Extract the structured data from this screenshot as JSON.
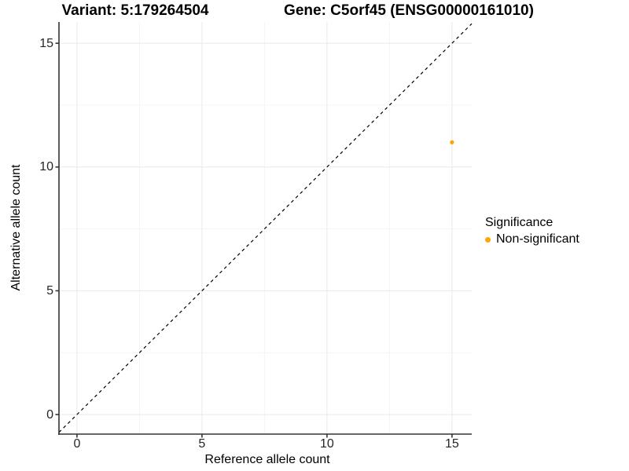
{
  "chart_data": {
    "type": "scatter",
    "title_left": "Variant: 5:179264504",
    "title_right": "Gene: C5orf45 (ENSG00000161010)",
    "xlabel": "Reference allele count",
    "ylabel": "Alternative allele count",
    "xlim": [
      -0.72,
      15.79
    ],
    "ylim": [
      -0.79,
      15.86
    ],
    "xticks": [
      0,
      5,
      10,
      15
    ],
    "yticks": [
      0,
      5,
      10,
      15
    ],
    "xminor": [
      2.5,
      7.5,
      12.5
    ],
    "yminor": [
      2.5,
      7.5,
      12.5
    ],
    "grid": true,
    "identity_line": {
      "style": "dashed",
      "slope": 1,
      "intercept": 0,
      "color": "#000000"
    },
    "series": [
      {
        "name": "Non-significant",
        "color": "#FFA500",
        "points": [
          {
            "x": 15,
            "y": 11
          }
        ]
      }
    ],
    "legend": {
      "title": "Significance",
      "position": "right",
      "items": [
        {
          "label": "Non-significant",
          "color": "#FFA500"
        }
      ]
    },
    "colors": {
      "major_grid": "#e9e9e9",
      "minor_grid": "#f4f4f4",
      "axis_line": "#333333",
      "point": "#FFA500",
      "background": "#ffffff"
    }
  }
}
